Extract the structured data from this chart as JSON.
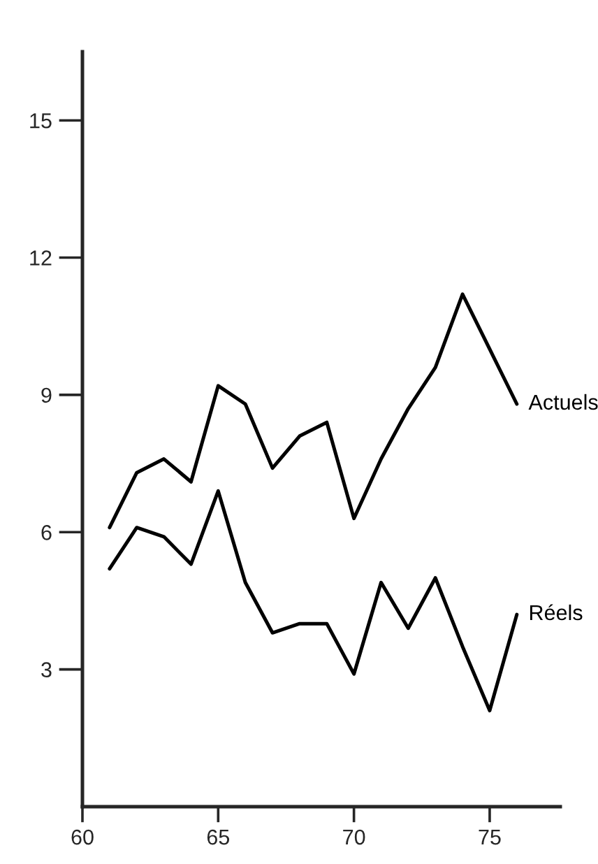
{
  "chart_data": {
    "type": "line",
    "x": [
      61,
      62,
      63,
      64,
      65,
      66,
      67,
      68,
      69,
      70,
      71,
      72,
      73,
      74,
      75,
      76
    ],
    "series": [
      {
        "name": "Actuels",
        "color": "#000000",
        "values": [
          6.1,
          7.3,
          7.6,
          7.1,
          9.2,
          8.8,
          7.4,
          8.1,
          8.4,
          6.3,
          7.6,
          8.7,
          9.6,
          11.2,
          10.0,
          8.8
        ]
      },
      {
        "name": "Réels",
        "color": "#000000",
        "values": [
          5.2,
          6.1,
          5.9,
          5.3,
          6.9,
          4.9,
          3.8,
          4.0,
          4.0,
          2.9,
          4.9,
          3.9,
          5.0,
          3.5,
          2.1,
          4.2
        ]
      }
    ],
    "xlim": [
      60,
      77.6
    ],
    "ylim": [
      0,
      16.5
    ],
    "xticks": [
      60,
      65,
      70,
      75
    ],
    "yticks": [
      3,
      6,
      9,
      12,
      15
    ],
    "grid": false,
    "legend": false,
    "marker": "none",
    "line_style": "solid"
  }
}
